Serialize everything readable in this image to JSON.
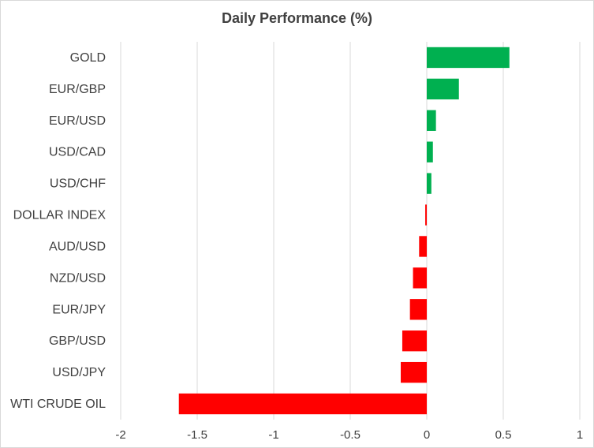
{
  "chart_data": {
    "type": "bar",
    "orientation": "horizontal",
    "title": "Daily Performance (%)",
    "categories": [
      "GOLD",
      "EUR/GBP",
      "EUR/USD",
      "USD/CAD",
      "USD/CHF",
      "DOLLAR INDEX",
      "AUD/USD",
      "NZD/USD",
      "EUR/JPY",
      "GBP/USD",
      "USD/JPY",
      "WTI CRUDE OIL"
    ],
    "values": [
      0.54,
      0.21,
      0.06,
      0.04,
      0.03,
      -0.01,
      -0.05,
      -0.09,
      -0.11,
      -0.16,
      -0.17,
      -1.62
    ],
    "xlim": [
      -2,
      1
    ],
    "xticks": [
      "-2",
      "-1.5",
      "-1",
      "-0.5",
      "0",
      "0.5",
      "1"
    ],
    "grid": true,
    "legend": "none",
    "colors": {
      "positive": "#00b050",
      "negative": "#ff0000",
      "grid": "#d9d9d9",
      "text": "#404040"
    }
  }
}
